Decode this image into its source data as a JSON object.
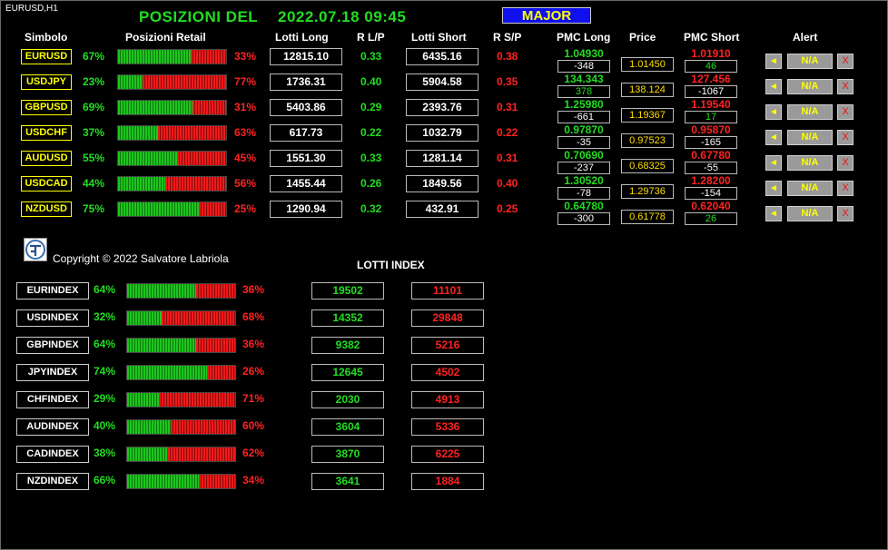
{
  "chart_label": "EURUSD,H1",
  "title": {
    "label": "POSIZIONI  DEL",
    "datetime": "2022.07.18 09:45"
  },
  "major_button": "MAJOR",
  "headers": {
    "simbolo": "Simbolo",
    "posizioni_retail": "Posizioni Retail",
    "lotti_long": "Lotti Long",
    "r_lp": "R L/P",
    "lotti_short": "Lotti Short",
    "r_sp": "R S/P",
    "pmc_long": "PMC Long",
    "price": "Price",
    "pmc_short": "PMC Short",
    "alert": "Alert"
  },
  "colors": {
    "long": "#22dd22",
    "short": "#ff2222",
    "symbol": "#ffff00",
    "price": "#ffdd00"
  },
  "pairs": [
    {
      "symbol": "EURUSD",
      "long_pct": "67%",
      "long_value": 67,
      "short_pct": "33%",
      "lotti_long": "12815.10",
      "r_lp": "0.33",
      "lotti_short": "6435.16",
      "r_sp": "0.38",
      "pmc_long": "1.04930",
      "pmc_long_diff": "-348",
      "pmc_long_diff_color": "#ffffff",
      "price": "1.01450",
      "pmc_short": "1.01910",
      "pmc_short_diff": "46",
      "pmc_short_diff_color": "#22dd22",
      "alert": "N/A"
    },
    {
      "symbol": "USDJPY",
      "long_pct": "23%",
      "long_value": 23,
      "short_pct": "77%",
      "lotti_long": "1736.31",
      "r_lp": "0.40",
      "lotti_short": "5904.58",
      "r_sp": "0.35",
      "pmc_long": "134.343",
      "pmc_long_diff": "378",
      "pmc_long_diff_color": "#22dd22",
      "price": "138.124",
      "pmc_short": "127.456",
      "pmc_short_diff": "-1067",
      "pmc_short_diff_color": "#ffffff",
      "alert": "N/A"
    },
    {
      "symbol": "GBPUSD",
      "long_pct": "69%",
      "long_value": 69,
      "short_pct": "31%",
      "lotti_long": "5403.86",
      "r_lp": "0.29",
      "lotti_short": "2393.76",
      "r_sp": "0.31",
      "pmc_long": "1.25980",
      "pmc_long_diff": "-661",
      "pmc_long_diff_color": "#ffffff",
      "price": "1.19367",
      "pmc_short": "1.19540",
      "pmc_short_diff": "17",
      "pmc_short_diff_color": "#22dd22",
      "alert": "N/A"
    },
    {
      "symbol": "USDCHF",
      "long_pct": "37%",
      "long_value": 37,
      "short_pct": "63%",
      "lotti_long": "617.73",
      "r_lp": "0.22",
      "lotti_short": "1032.79",
      "r_sp": "0.22",
      "pmc_long": "0.97870",
      "pmc_long_diff": "-35",
      "pmc_long_diff_color": "#ffffff",
      "price": "0.97523",
      "pmc_short": "0.95870",
      "pmc_short_diff": "-165",
      "pmc_short_diff_color": "#ffffff",
      "alert": "N/A"
    },
    {
      "symbol": "AUDUSD",
      "long_pct": "55%",
      "long_value": 55,
      "short_pct": "45%",
      "lotti_long": "1551.30",
      "r_lp": "0.33",
      "lotti_short": "1281.14",
      "r_sp": "0.31",
      "pmc_long": "0.70690",
      "pmc_long_diff": "-237",
      "pmc_long_diff_color": "#ffffff",
      "price": "0.68325",
      "pmc_short": "0.67780",
      "pmc_short_diff": "-55",
      "pmc_short_diff_color": "#ffffff",
      "alert": "N/A"
    },
    {
      "symbol": "USDCAD",
      "long_pct": "44%",
      "long_value": 44,
      "short_pct": "56%",
      "lotti_long": "1455.44",
      "r_lp": "0.26",
      "lotti_short": "1849.56",
      "r_sp": "0.40",
      "pmc_long": "1.30520",
      "pmc_long_diff": "-78",
      "pmc_long_diff_color": "#ffffff",
      "price": "1.29736",
      "pmc_short": "1.28200",
      "pmc_short_diff": "-154",
      "pmc_short_diff_color": "#ffffff",
      "alert": "N/A"
    },
    {
      "symbol": "NZDUSD",
      "long_pct": "75%",
      "long_value": 75,
      "short_pct": "25%",
      "lotti_long": "1290.94",
      "r_lp": "0.32",
      "lotti_short": "432.91",
      "r_sp": "0.25",
      "pmc_long": "0.64780",
      "pmc_long_diff": "-300",
      "pmc_long_diff_color": "#ffffff",
      "price": "0.61778",
      "pmc_short": "0.62040",
      "pmc_short_diff": "26",
      "pmc_short_diff_color": "#22dd22",
      "alert": "N/A"
    }
  ],
  "copyright": "Copyright © 2022 Salvatore Labriola",
  "lotti_index_title": "LOTTI INDEX",
  "indexes": [
    {
      "name": "EURINDEX",
      "long_pct": "64%",
      "long_value": 64,
      "short_pct": "36%",
      "lotti_long": "19502",
      "lotti_short": "11101"
    },
    {
      "name": "USDINDEX",
      "long_pct": "32%",
      "long_value": 32,
      "short_pct": "68%",
      "lotti_long": "14352",
      "lotti_short": "29848"
    },
    {
      "name": "GBPINDEX",
      "long_pct": "64%",
      "long_value": 64,
      "short_pct": "36%",
      "lotti_long": "9382",
      "lotti_short": "5216"
    },
    {
      "name": "JPYINDEX",
      "long_pct": "74%",
      "long_value": 74,
      "short_pct": "26%",
      "lotti_long": "12645",
      "lotti_short": "4502"
    },
    {
      "name": "CHFINDEX",
      "long_pct": "29%",
      "long_value": 29,
      "short_pct": "71%",
      "lotti_long": "2030",
      "lotti_short": "4913"
    },
    {
      "name": "AUDINDEX",
      "long_pct": "40%",
      "long_value": 40,
      "short_pct": "60%",
      "lotti_long": "3604",
      "lotti_short": "5336"
    },
    {
      "name": "CADINDEX",
      "long_pct": "38%",
      "long_value": 38,
      "short_pct": "62%",
      "lotti_long": "3870",
      "lotti_short": "6225"
    },
    {
      "name": "NZDINDEX",
      "long_pct": "66%",
      "long_value": 66,
      "short_pct": "34%",
      "lotti_long": "3641",
      "lotti_short": "1884"
    }
  ],
  "icons": {
    "bell": "alert-bell-icon",
    "close": "close-icon",
    "logo": "author-logo-icon"
  }
}
